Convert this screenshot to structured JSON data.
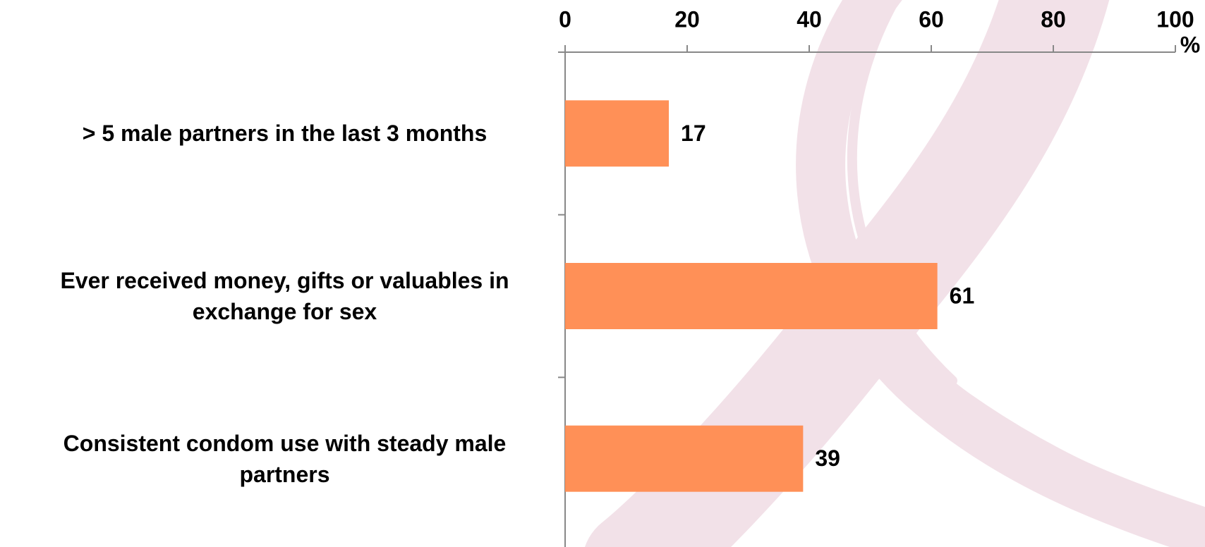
{
  "chart_data": {
    "type": "bar",
    "orientation": "horizontal",
    "categories": [
      "> 5 male partners in the last 3 months",
      "Ever received money, gifts or valuables in exchange for sex",
      "Consistent condom use with steady male partners"
    ],
    "values": [
      17,
      61,
      39
    ],
    "color": "#ff9057",
    "xlim": [
      0,
      100
    ],
    "xticks": [
      0,
      20,
      40,
      60,
      80,
      100
    ],
    "xlabel": "%",
    "grid": false
  }
}
